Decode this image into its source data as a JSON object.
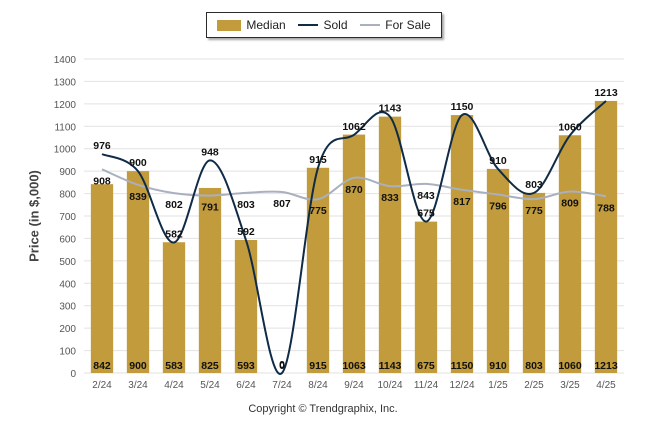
{
  "colors": {
    "median": "#c19b3c",
    "sold": "#0f2b46",
    "for_sale": "#a9b0bf",
    "grid": "#e2e2e2",
    "axis_text": "#555555"
  },
  "legend": {
    "median": "Median",
    "sold": "Sold",
    "for_sale": "For Sale"
  },
  "copyright": "Copyright © Trendgraphix, Inc.",
  "chart_data": {
    "type": "bar",
    "ylabel": "Price (in $,000)",
    "ylim": [
      0,
      1400
    ],
    "yticks": [
      0,
      100,
      200,
      300,
      400,
      500,
      600,
      700,
      800,
      900,
      1000,
      1100,
      1200,
      1300,
      1400
    ],
    "grid": true,
    "legend_position": "top-center",
    "categories": [
      "2/24",
      "3/24",
      "4/24",
      "5/24",
      "6/24",
      "7/24",
      "8/24",
      "9/24",
      "10/24",
      "11/24",
      "12/24",
      "1/25",
      "2/25",
      "3/25",
      "4/25"
    ],
    "series": [
      {
        "name": "Median",
        "type": "bar",
        "values": [
          842,
          900,
          583,
          825,
          593,
          0,
          915,
          1063,
          1143,
          675,
          1150,
          910,
          803,
          1060,
          1213
        ]
      },
      {
        "name": "Sold",
        "type": "line",
        "values": [
          976,
          900,
          582,
          948,
          592,
          0,
          915,
          1062,
          1143,
          675,
          1150,
          910,
          803,
          1060,
          1213
        ]
      },
      {
        "name": "For Sale",
        "type": "line",
        "values": [
          908,
          839,
          802,
          791,
          803,
          807,
          775,
          870,
          833,
          843,
          817,
          796,
          775,
          809,
          788
        ]
      }
    ]
  }
}
